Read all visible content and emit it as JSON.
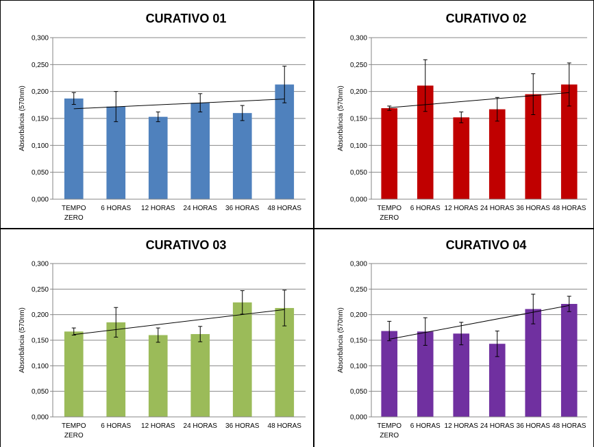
{
  "chart_data": [
    {
      "type": "bar",
      "title": "CURATIVO 01",
      "ylabel": "Absorbância (570nm)",
      "xlabel": "",
      "categories": [
        [
          "TEMPO",
          "ZERO"
        ],
        [
          "6 HORAS"
        ],
        [
          "12 HORAS"
        ],
        [
          "24 HORAS"
        ],
        [
          "36 HORAS"
        ],
        [
          "48 HORAS"
        ]
      ],
      "values": [
        0.187,
        0.172,
        0.153,
        0.179,
        0.16,
        0.213
      ],
      "error": [
        0.011,
        0.028,
        0.009,
        0.017,
        0.014,
        0.034
      ],
      "trendline": [
        0.168,
        0.186
      ],
      "color": "#4F81BD",
      "ylim": [
        0,
        0.3
      ],
      "yticks": [
        "0,000",
        "0,050",
        "0,100",
        "0,150",
        "0,200",
        "0,250",
        "0,300"
      ],
      "grid": true
    },
    {
      "type": "bar",
      "title": "CURATIVO 02",
      "ylabel": "Absorbância (570nm)",
      "xlabel": "",
      "categories": [
        [
          "TEMPO",
          "ZERO"
        ],
        [
          "6 HORAS"
        ],
        [
          "12 HORAS"
        ],
        [
          "24 HORAS"
        ],
        [
          "36 HORAS"
        ],
        [
          "48 HORAS"
        ]
      ],
      "values": [
        0.169,
        0.211,
        0.152,
        0.167,
        0.195,
        0.213
      ],
      "error": [
        0.004,
        0.048,
        0.01,
        0.022,
        0.038,
        0.04
      ],
      "trendline": [
        0.17,
        0.198
      ],
      "color": "#C00000",
      "ylim": [
        0,
        0.3
      ],
      "yticks": [
        "0,000",
        "0,050",
        "0,100",
        "0,150",
        "0,200",
        "0,250",
        "0,300"
      ],
      "grid": true
    },
    {
      "type": "bar",
      "title": "CURATIVO 03",
      "ylabel": "Absorbância (570nm)",
      "xlabel": "",
      "categories": [
        [
          "TEMPO",
          "ZERO"
        ],
        [
          "6 HORAS"
        ],
        [
          "12 HORAS"
        ],
        [
          "24 HORAS"
        ],
        [
          "36 HORAS"
        ],
        [
          "48 HORAS"
        ]
      ],
      "values": [
        0.167,
        0.185,
        0.16,
        0.162,
        0.224,
        0.213
      ],
      "error": [
        0.007,
        0.029,
        0.014,
        0.015,
        0.023,
        0.035
      ],
      "trendline": [
        0.161,
        0.21
      ],
      "color": "#9BBB59",
      "ylim": [
        0,
        0.3
      ],
      "yticks": [
        "0,000",
        "0,050",
        "0,100",
        "0,150",
        "0,200",
        "0,250",
        "0,300"
      ],
      "grid": true
    },
    {
      "type": "bar",
      "title": "CURATIVO 04",
      "ylabel": "Absorbância (570nm)",
      "xlabel": "",
      "categories": [
        [
          "TEMPO",
          "ZERO"
        ],
        [
          "6 HORAS"
        ],
        [
          "12 HORAS"
        ],
        [
          "24 HORAS"
        ],
        [
          "36 HORAS"
        ],
        [
          "48 HORAS"
        ]
      ],
      "values": [
        0.168,
        0.167,
        0.163,
        0.143,
        0.211,
        0.221
      ],
      "error": [
        0.019,
        0.027,
        0.022,
        0.025,
        0.029,
        0.015
      ],
      "trendline": [
        0.152,
        0.218
      ],
      "color": "#7030A0",
      "ylim": [
        0,
        0.3
      ],
      "yticks": [
        "0,000",
        "0,050",
        "0,100",
        "0,150",
        "0,200",
        "0,250",
        "0,300"
      ],
      "grid": true
    }
  ]
}
